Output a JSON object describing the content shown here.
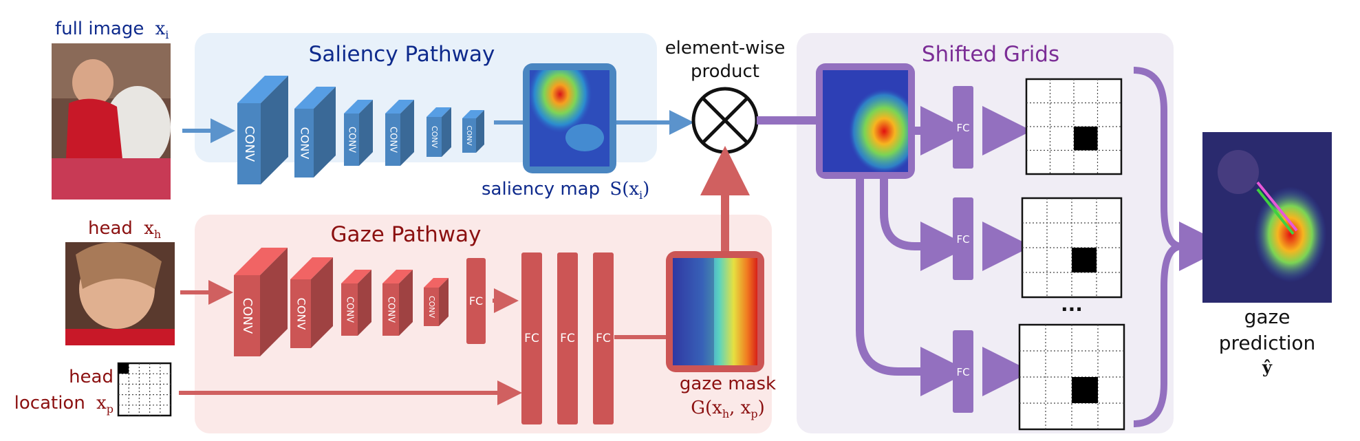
{
  "colors": {
    "saliency_panel_bg": "#e8f1fa",
    "saliency_blue": "#4a86c1",
    "saliency_title": "#0e2a8c",
    "gaze_panel_bg": "#fbe9e8",
    "gaze_red": "#cc5555",
    "gaze_title": "#8b1010",
    "grids_panel_bg": "#f0edf5",
    "grids_purple": "#9370bf",
    "grids_title": "#7b2d96",
    "text_dark": "#111111"
  },
  "inputs": {
    "full_image_label": "full image",
    "full_image_var": "x",
    "full_image_sub": "i",
    "head_label": "head",
    "head_var": "x",
    "head_sub": "h",
    "head_location_line1": "head",
    "head_location_line2": "location",
    "head_location_var": "x",
    "head_location_sub": "p"
  },
  "saliency_pathway": {
    "title": "Saliency Pathway",
    "conv_label": "CONV",
    "map_label": "saliency map",
    "map_func": "S(x",
    "map_sub": "i",
    "map_close": ")"
  },
  "gaze_pathway": {
    "title": "Gaze Pathway",
    "conv_label": "CONV",
    "fc_label": "FC",
    "mask_label": "gaze mask",
    "mask_func_a": "G(x",
    "mask_sub_a": "h",
    "mask_func_b": ", x",
    "mask_sub_b": "p",
    "mask_close": ")"
  },
  "product": {
    "line1": "element-wise",
    "line2": "product"
  },
  "shifted_grids": {
    "title": "Shifted Grids",
    "fc_label": "FC",
    "ellipsis": "...",
    "grids": [
      {
        "active_row": 2,
        "active_col": 2
      },
      {
        "active_row": 2,
        "active_col": 2
      },
      {
        "active_row": 2,
        "active_col": 2
      }
    ]
  },
  "output": {
    "line1": "gaze",
    "line2": "prediction",
    "symbol": "ŷ"
  },
  "head_location_grid": {
    "active_row": 0,
    "active_col": 0
  }
}
